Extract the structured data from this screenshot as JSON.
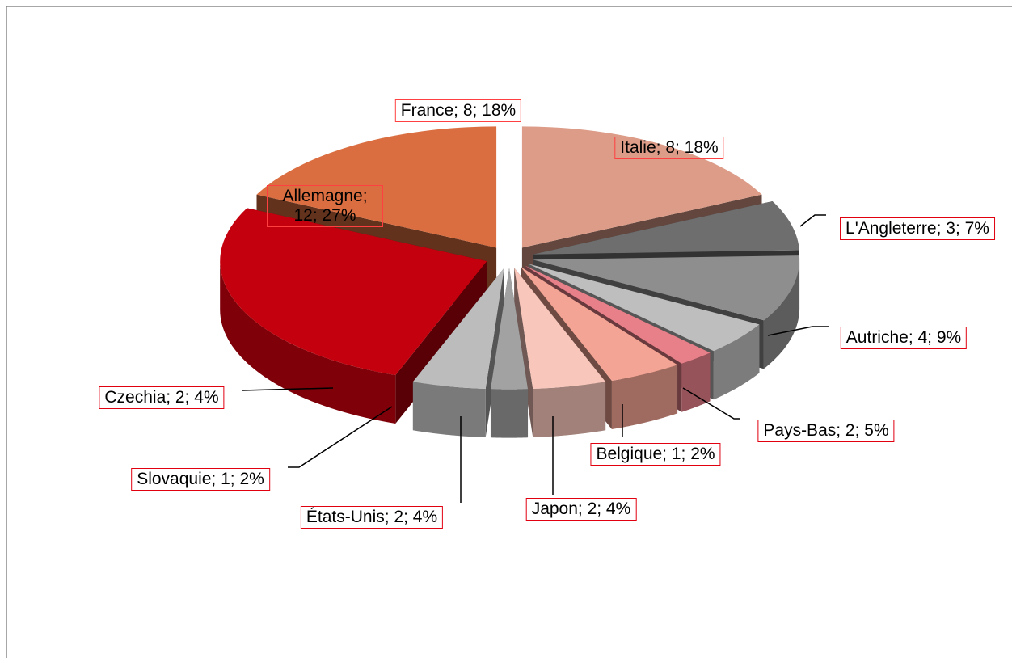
{
  "chart_data": {
    "type": "pie3d",
    "categories": [
      "Italie",
      "L'Angleterre",
      "Autriche",
      "Pays-Bas",
      "Belgique",
      "Japon",
      "États-Unis",
      "Slovaquie",
      "Czechia",
      "Allemagne",
      "France"
    ],
    "values": [
      8,
      3,
      4,
      2,
      1,
      2,
      2,
      1,
      2,
      12,
      8
    ],
    "value_labels": [
      "Italie; 8; 18%",
      "L'Angleterre; 3; 7%",
      "Autriche; 4; 9%",
      "Pays-Bas; 2; 5%",
      "Belgique; 1; 2%",
      "Japon; 2; 4%",
      "États-Unis; 2; 4%",
      "Slovaquie; 1; 2%",
      "Czechia; 2; 4%",
      "Allemagne; 12; 27%",
      "France; 8; 18%"
    ],
    "colors": [
      "#dc9c88",
      "#6e6e6e",
      "#8e8e8e",
      "#bebebe",
      "#e8808a",
      "#f4a494",
      "#f8c6ba",
      "#a2a2a2",
      "#bcbcbc",
      "#c4000e",
      "#da6e40"
    ]
  }
}
